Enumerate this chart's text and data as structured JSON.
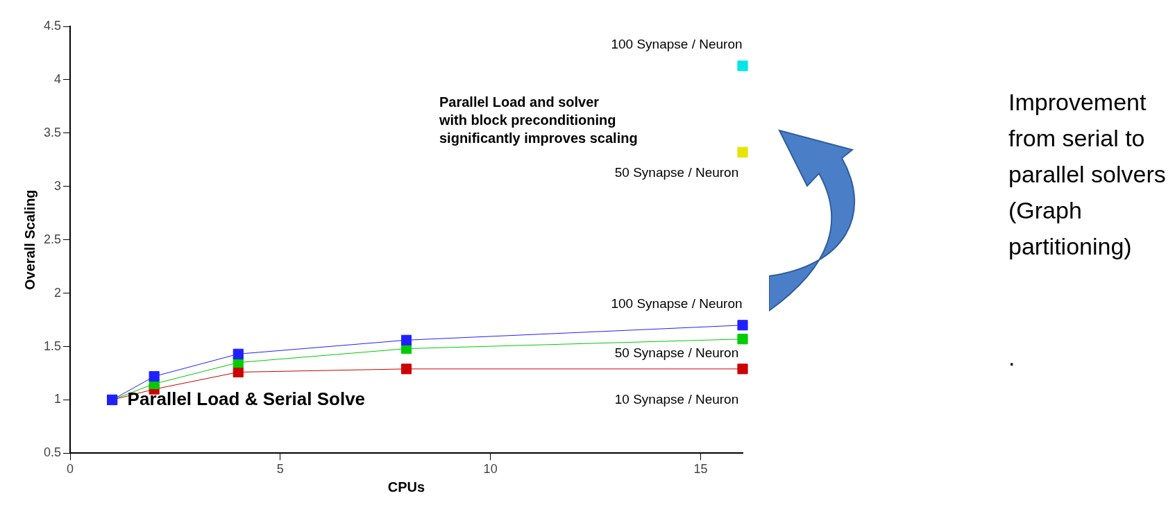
{
  "chart_data": {
    "type": "line",
    "xlabel": "CPUs",
    "ylabel": "Overall Scaling",
    "xlim": [
      0,
      16
    ],
    "xticks": [
      0,
      5,
      10,
      15
    ],
    "ylim": [
      0.5,
      4.5
    ],
    "yticks": [
      0.5,
      1,
      1.5,
      2,
      2.5,
      3,
      3.5,
      4,
      4.5
    ],
    "grid": false,
    "legend": false,
    "marker": "square",
    "line_style": "solid",
    "series": [
      {
        "name": "100 Synapse / Neuron",
        "color": "#2020ff",
        "x": [
          1,
          2,
          4,
          8,
          16
        ],
        "values": [
          1,
          1.22,
          1.43,
          1.56,
          1.7
        ]
      },
      {
        "name": "50 Synapse / Neuron",
        "color": "#00cc00",
        "x": [
          1,
          2,
          4,
          8,
          16
        ],
        "values": [
          1,
          1.15,
          1.35,
          1.48,
          1.57
        ]
      },
      {
        "name": "10 Synapse / Neuron",
        "color": "#cc0000",
        "x": [
          1,
          2,
          4,
          8,
          16
        ],
        "values": [
          1,
          1.1,
          1.26,
          1.29,
          1.29
        ]
      },
      {
        "name": "100 Synapse / Neuron",
        "type": "scatter",
        "color": "#00e5e5",
        "x": [
          16
        ],
        "values": [
          4.13
        ]
      },
      {
        "name": "50 Synapse / Neuron",
        "type": "scatter",
        "color": "#e5e500",
        "x": [
          16
        ],
        "values": [
          3.32
        ]
      }
    ],
    "annotations": [
      {
        "text": "Parallel Load & Serial Solve",
        "x": 1,
        "y": 1
      },
      "Parallel Load and solver\nwith block preconditioning\nsignificantly improves scaling",
      "Improvement\nfrom serial to\nparallel solvers\n(Graph\npartitioning)",
      "."
    ]
  }
}
